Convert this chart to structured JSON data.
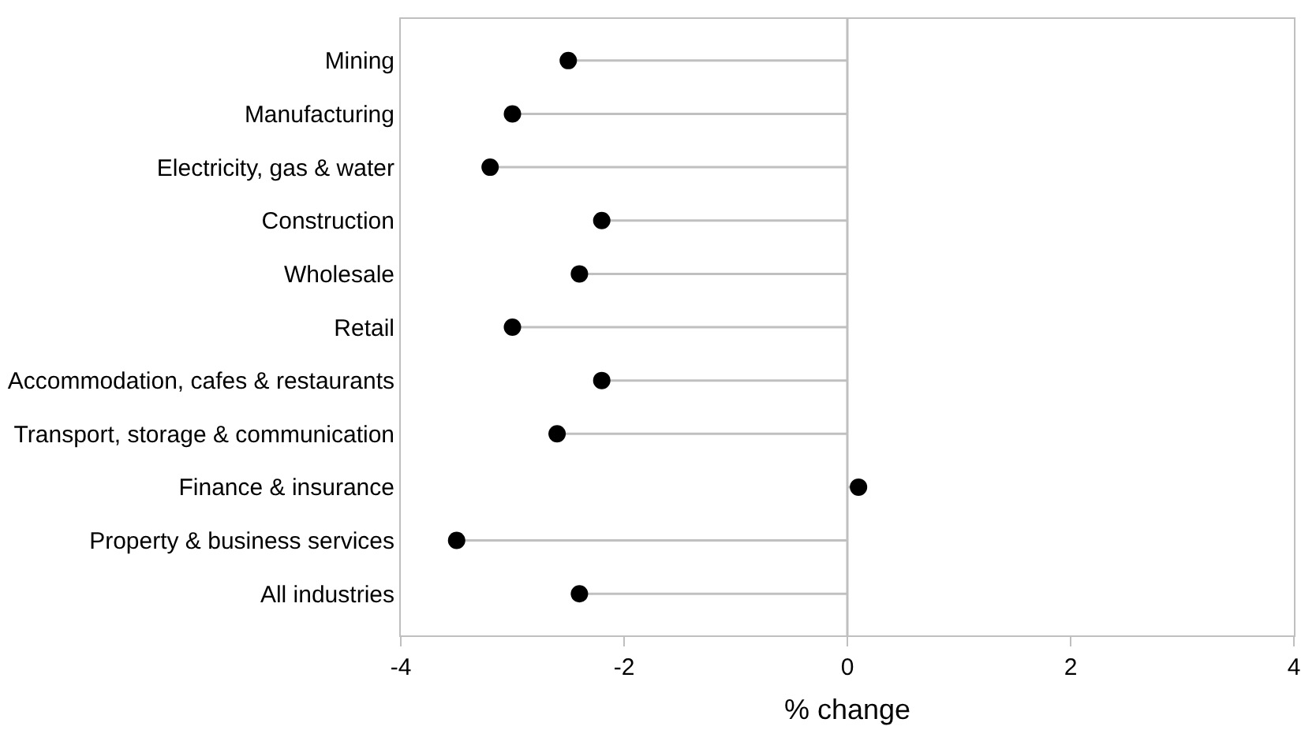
{
  "chart_data": {
    "type": "lollipop",
    "orientation": "horizontal",
    "xlabel": "% change",
    "categories": [
      "Mining",
      "Manufacturing",
      "Electricity, gas & water",
      "Construction",
      "Wholesale",
      "Retail",
      "Accommodation, cafes & restaurants",
      "Transport, storage & communication",
      "Finance & insurance",
      "Property & business services",
      "All industries"
    ],
    "series": [
      {
        "color": "#000000",
        "values": [
          -2.5,
          -3.0,
          -3.2,
          -2.2,
          -2.4,
          -3.0,
          -2.2,
          -2.6,
          0.1,
          -3.5,
          -2.4
        ]
      }
    ],
    "ref_lines": [
      {
        "axis": "x",
        "value": 0,
        "color": "#bfbfbf"
      }
    ],
    "marker": "circle",
    "xlim": [
      -4,
      4
    ],
    "xticks": [
      -4,
      -2,
      0,
      2,
      4
    ]
  }
}
